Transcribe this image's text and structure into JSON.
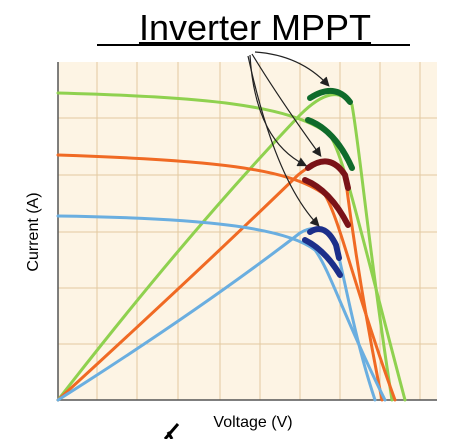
{
  "title": "Inverter MPPT",
  "x_label": "Voltage (V)",
  "y_label": "Current (A)"
}
